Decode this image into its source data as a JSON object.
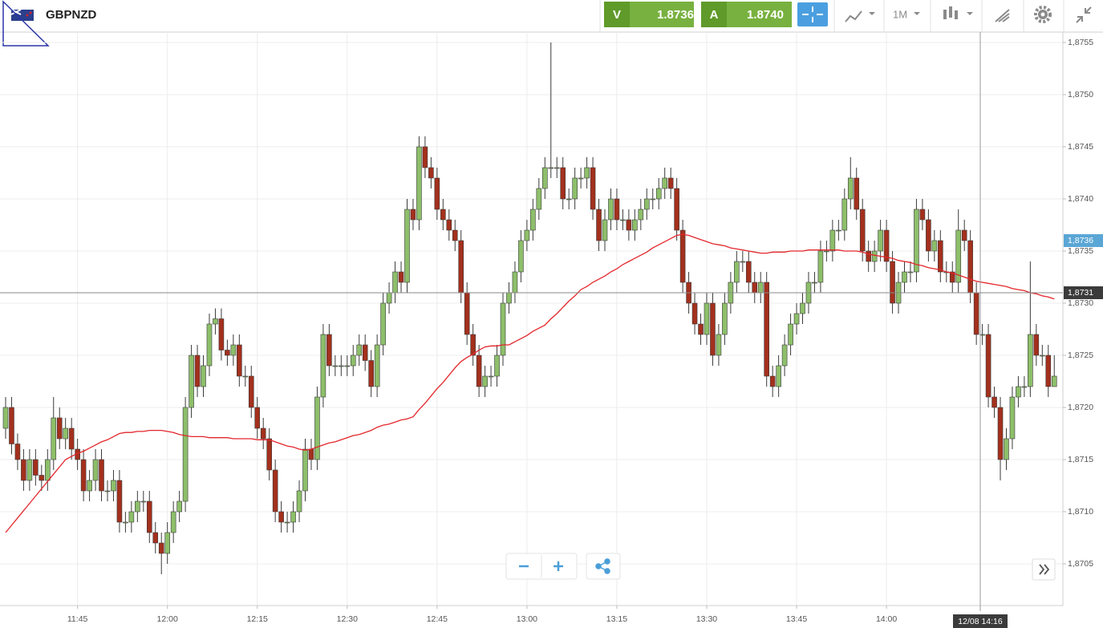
{
  "toolbar": {
    "symbol": "GBPNZD",
    "bid_label": "V",
    "bid": "1.8736",
    "ask_label": "A",
    "ask": "1.8740",
    "timeframe": "1M"
  },
  "chart_data": {
    "type": "candlestick",
    "categories": [
      null,
      null,
      null,
      null,
      null,
      null,
      null,
      null,
      null,
      null,
      null,
      null,
      "11:45",
      null,
      null,
      null,
      null,
      null,
      null,
      null,
      null,
      null,
      null,
      null,
      null,
      null,
      null,
      "12:00",
      null,
      null,
      null,
      null,
      null,
      null,
      null,
      null,
      null,
      null,
      null,
      null,
      null,
      null,
      "12:15",
      null,
      null,
      null,
      null,
      null,
      null,
      null,
      null,
      null,
      null,
      null,
      null,
      null,
      null,
      "12:30",
      null,
      null,
      null,
      null,
      null,
      null,
      null,
      null,
      null,
      null,
      null,
      null,
      null,
      null,
      "12:45",
      null,
      null,
      null,
      null,
      null,
      null,
      null,
      null,
      null,
      null,
      null,
      null,
      null,
      null,
      "13:00",
      null,
      null,
      null,
      null,
      null,
      null,
      null,
      null,
      null,
      null,
      null,
      null,
      null,
      null,
      "13:15",
      null,
      null,
      null,
      null,
      null,
      null,
      null,
      null,
      null,
      null,
      null,
      null,
      null,
      null,
      "13:30",
      null,
      null,
      null,
      null,
      null,
      null,
      null,
      null,
      null,
      null,
      null,
      null,
      null,
      null,
      "13:45",
      null,
      null,
      null,
      null,
      null,
      null,
      null,
      null,
      null,
      null,
      null,
      null,
      null,
      null,
      "14:00",
      null,
      null,
      null,
      null,
      null,
      null,
      null,
      null,
      null,
      null,
      null,
      null,
      null,
      null,
      null,
      null,
      null,
      null,
      null,
      null,
      null,
      null,
      null,
      null,
      null,
      null,
      null,
      null
    ],
    "open": [
      1.8718,
      1.872,
      1.87165,
      1.8715,
      1.8713,
      1.8715,
      1.87135,
      1.8713,
      1.8715,
      1.8719,
      1.8717,
      1.8718,
      1.8716,
      1.8715,
      1.8712,
      1.8713,
      1.8715,
      1.8712,
      1.8712,
      1.8713,
      1.8709,
      1.8709,
      1.871,
      1.8711,
      1.8711,
      1.8708,
      1.8707,
      1.8706,
      1.8708,
      1.871,
      1.8711,
      1.872,
      1.8725,
      1.8722,
      1.8724,
      1.8728,
      1.87285,
      1.87255,
      1.8725,
      1.8726,
      1.8723,
      1.8723,
      1.872,
      1.8718,
      1.8717,
      1.8714,
      1.871,
      1.8709,
      1.8709,
      1.871,
      1.8712,
      1.8716,
      1.8715,
      1.8721,
      1.8727,
      1.8724,
      1.8724,
      1.8724,
      1.8724,
      1.8725,
      1.8726,
      1.87245,
      1.8722,
      1.8726,
      1.873,
      1.8731,
      1.8733,
      1.8732,
      1.8739,
      1.8738,
      1.8745,
      1.8743,
      1.8742,
      1.8739,
      1.8738,
      1.8737,
      1.8736,
      1.8731,
      1.8727,
      1.8725,
      1.8722,
      1.8723,
      1.8723,
      1.8725,
      1.873,
      1.8731,
      1.8733,
      1.8736,
      1.8737,
      1.8739,
      1.8741,
      1.8743,
      1.8743,
      1.8743,
      1.874,
      1.874,
      1.8742,
      1.8742,
      1.8743,
      1.8739,
      1.8736,
      1.8738,
      1.874,
      1.8738,
      1.8738,
      1.8737,
      1.8738,
      1.8739,
      1.874,
      1.874,
      1.8741,
      1.8742,
      1.8741,
      1.8737,
      1.8732,
      1.873,
      1.8728,
      1.8727,
      1.873,
      1.8725,
      1.8727,
      1.873,
      1.8732,
      1.8734,
      1.8734,
      1.8732,
      1.8731,
      1.8732,
      1.8723,
      1.8722,
      1.8724,
      1.8726,
      1.8728,
      1.8729,
      1.873,
      1.8732,
      1.8732,
      1.8735,
      1.8735,
      1.8737,
      1.8737,
      1.874,
      1.8742,
      1.8739,
      1.8735,
      1.8734,
      1.8735,
      1.8737,
      1.8734,
      1.873,
      1.8732,
      1.8733,
      1.8733,
      1.8739,
      1.8738,
      1.8735,
      1.8736,
      1.8733,
      1.8733,
      1.8732,
      1.8737,
      1.8736,
      1.8731,
      1.8727,
      1.8727,
      1.8721,
      1.872,
      1.8715,
      1.8717,
      1.8721,
      1.8722,
      1.8722,
      1.8727,
      1.8725,
      1.8725,
      1.8722
    ],
    "high": [
      1.8721,
      1.8721,
      1.87175,
      1.8716,
      1.8716,
      1.8716,
      1.87145,
      1.8716,
      1.8721,
      1.872,
      1.8719,
      1.8719,
      1.8717,
      1.8716,
      1.8714,
      1.8716,
      1.8716,
      1.8713,
      1.8714,
      1.8714,
      1.871,
      1.8711,
      1.8712,
      1.8712,
      1.8712,
      1.8709,
      1.8708,
      1.8709,
      1.8711,
      1.8712,
      1.8721,
      1.8726,
      1.8726,
      1.8725,
      1.8729,
      1.87295,
      1.87295,
      1.87265,
      1.8727,
      1.8727,
      1.8724,
      1.8724,
      1.8721,
      1.8719,
      1.8718,
      1.8715,
      1.8711,
      1.871,
      1.8711,
      1.8713,
      1.8717,
      1.8717,
      1.8722,
      1.8728,
      1.8728,
      1.8725,
      1.8725,
      1.8725,
      1.8726,
      1.8727,
      1.8727,
      1.87255,
      1.8727,
      1.8731,
      1.8732,
      1.8734,
      1.8734,
      1.874,
      1.874,
      1.8746,
      1.8746,
      1.8744,
      1.8743,
      1.874,
      1.8739,
      1.8738,
      1.8737,
      1.8732,
      1.8728,
      1.8726,
      1.8724,
      1.8724,
      1.8726,
      1.8731,
      1.8732,
      1.8734,
      1.8737,
      1.8738,
      1.874,
      1.8742,
      1.8744,
      1.8755,
      1.8744,
      1.8744,
      1.8741,
      1.8743,
      1.8743,
      1.8744,
      1.8744,
      1.874,
      1.8739,
      1.8741,
      1.8741,
      1.8739,
      1.8739,
      1.8739,
      1.874,
      1.8741,
      1.8741,
      1.8742,
      1.8743,
      1.8743,
      1.8742,
      1.8738,
      1.8733,
      1.8731,
      1.8729,
      1.8731,
      1.8731,
      1.8728,
      1.8731,
      1.8733,
      1.8735,
      1.8735,
      1.8735,
      1.8733,
      1.8733,
      1.8733,
      1.8724,
      1.8725,
      1.8727,
      1.8729,
      1.873,
      1.8731,
      1.8733,
      1.8733,
      1.8736,
      1.8736,
      1.8738,
      1.8738,
      1.8741,
      1.8744,
      1.8743,
      1.874,
      1.8736,
      1.8736,
      1.8738,
      1.8738,
      1.8735,
      1.8733,
      1.8734,
      1.8734,
      1.874,
      1.874,
      1.8739,
      1.8737,
      1.8737,
      1.8734,
      1.8734,
      1.8739,
      1.8738,
      1.8737,
      1.8732,
      1.8728,
      1.8728,
      1.8722,
      1.8721,
      1.8718,
      1.8722,
      1.8723,
      1.8723,
      1.8734,
      1.8728,
      1.8726,
      1.8726,
      1.8725
    ],
    "low": [
      1.8717,
      1.87155,
      1.8714,
      1.8712,
      1.8712,
      1.87125,
      1.8712,
      1.8712,
      1.8714,
      1.8716,
      1.8716,
      1.8715,
      1.8714,
      1.8711,
      1.8711,
      1.8712,
      1.8711,
      1.8711,
      1.8711,
      1.8708,
      1.8708,
      1.8708,
      1.8709,
      1.871,
      1.8707,
      1.8706,
      1.8704,
      1.8705,
      1.8707,
      1.8709,
      1.871,
      1.8719,
      1.8721,
      1.8721,
      1.8723,
      1.8727,
      1.87245,
      1.8724,
      1.8724,
      1.8722,
      1.8722,
      1.8719,
      1.8717,
      1.8716,
      1.8713,
      1.8709,
      1.8708,
      1.8708,
      1.8708,
      1.8709,
      1.8711,
      1.8714,
      1.8714,
      1.872,
      1.8723,
      1.8723,
      1.8723,
      1.8723,
      1.8723,
      1.8724,
      1.87235,
      1.8721,
      1.8721,
      1.8725,
      1.8729,
      1.873,
      1.8731,
      1.8731,
      1.8737,
      1.8737,
      1.8742,
      1.8741,
      1.8738,
      1.8737,
      1.8736,
      1.8735,
      1.873,
      1.8726,
      1.8724,
      1.8721,
      1.8721,
      1.8722,
      1.8722,
      1.8724,
      1.8729,
      1.873,
      1.8732,
      1.8735,
      1.8736,
      1.8738,
      1.874,
      1.8742,
      1.8742,
      1.8739,
      1.8739,
      1.8739,
      1.8741,
      1.8741,
      1.8738,
      1.8735,
      1.8735,
      1.8737,
      1.8737,
      1.8737,
      1.8736,
      1.8736,
      1.8737,
      1.8738,
      1.8739,
      1.8739,
      1.874,
      1.874,
      1.8736,
      1.8731,
      1.8729,
      1.8727,
      1.8726,
      1.8726,
      1.8724,
      1.8724,
      1.8726,
      1.8729,
      1.8731,
      1.8733,
      1.8731,
      1.873,
      1.873,
      1.8722,
      1.8721,
      1.8721,
      1.8723,
      1.8725,
      1.8727,
      1.8728,
      1.8729,
      1.8731,
      1.8731,
      1.8734,
      1.8734,
      1.8736,
      1.8736,
      1.8739,
      1.8738,
      1.8734,
      1.8733,
      1.8733,
      1.8734,
      1.8733,
      1.8729,
      1.8729,
      1.8731,
      1.8732,
      1.8732,
      1.8737,
      1.8734,
      1.8734,
      1.8732,
      1.8732,
      1.8731,
      1.8731,
      1.8735,
      1.873,
      1.8726,
      1.8726,
      1.872,
      1.8719,
      1.8713,
      1.8714,
      1.8716,
      1.872,
      1.8721,
      1.8721,
      1.8724,
      1.8724,
      1.8721,
      1.8722
    ],
    "close": [
      1.872,
      1.87165,
      1.8715,
      1.8713,
      1.8715,
      1.87135,
      1.8713,
      1.8715,
      1.8719,
      1.8717,
      1.8718,
      1.8716,
      1.8715,
      1.8712,
      1.8713,
      1.8715,
      1.8712,
      1.8712,
      1.8713,
      1.8709,
      1.8709,
      1.871,
      1.8711,
      1.8711,
      1.8708,
      1.8707,
      1.8706,
      1.8708,
      1.871,
      1.8711,
      1.872,
      1.8725,
      1.8722,
      1.8724,
      1.8728,
      1.87285,
      1.87255,
      1.8725,
      1.8726,
      1.8723,
      1.8723,
      1.872,
      1.8718,
      1.8717,
      1.8714,
      1.871,
      1.8709,
      1.8709,
      1.871,
      1.8712,
      1.8716,
      1.8715,
      1.8721,
      1.8727,
      1.8724,
      1.8724,
      1.8724,
      1.8724,
      1.8725,
      1.8726,
      1.87245,
      1.8722,
      1.8726,
      1.873,
      1.8731,
      1.8733,
      1.8732,
      1.8739,
      1.8738,
      1.8745,
      1.8743,
      1.8742,
      1.8739,
      1.8738,
      1.8737,
      1.8736,
      1.8731,
      1.8727,
      1.8725,
      1.8722,
      1.8723,
      1.8723,
      1.8725,
      1.873,
      1.8731,
      1.8733,
      1.8736,
      1.8737,
      1.8739,
      1.8741,
      1.8743,
      1.8743,
      1.8743,
      1.874,
      1.874,
      1.8742,
      1.8742,
      1.8743,
      1.8739,
      1.8736,
      1.8738,
      1.874,
      1.8738,
      1.8738,
      1.8737,
      1.8738,
      1.8739,
      1.874,
      1.874,
      1.8741,
      1.8742,
      1.8741,
      1.8737,
      1.8732,
      1.873,
      1.8728,
      1.8727,
      1.873,
      1.8725,
      1.8727,
      1.873,
      1.8732,
      1.8734,
      1.8734,
      1.8732,
      1.8731,
      1.8732,
      1.8723,
      1.8722,
      1.8724,
      1.8726,
      1.8728,
      1.8729,
      1.873,
      1.8732,
      1.8732,
      1.8735,
      1.8735,
      1.8737,
      1.8737,
      1.874,
      1.8742,
      1.8739,
      1.8735,
      1.8734,
      1.8735,
      1.8737,
      1.8734,
      1.873,
      1.8732,
      1.8733,
      1.8733,
      1.8739,
      1.8738,
      1.8735,
      1.8736,
      1.8733,
      1.8733,
      1.8732,
      1.8737,
      1.8736,
      1.8731,
      1.8727,
      1.8727,
      1.8721,
      1.872,
      1.8715,
      1.8717,
      1.8721,
      1.8722,
      1.8722,
      1.8727,
      1.8725,
      1.8725,
      1.8722,
      1.8723
    ],
    "up_color": "#8dbf6a",
    "down_color": "#a3301d",
    "moving_average": {
      "color": "#e3262b",
      "values": [
        1.8708,
        1.87087,
        1.87094,
        1.87101,
        1.87108,
        1.87115,
        1.87122,
        1.87129,
        1.87136,
        1.87143,
        1.8715,
        1.87153,
        1.87156,
        1.87158,
        1.87161,
        1.87164,
        1.87167,
        1.87169,
        1.87172,
        1.87175,
        1.87176,
        1.87176,
        1.87177,
        1.87177,
        1.87178,
        1.87178,
        1.87178,
        1.87177,
        1.87176,
        1.87174,
        1.87173,
        1.87172,
        1.87172,
        1.87172,
        1.87171,
        1.87171,
        1.87171,
        1.87171,
        1.8717,
        1.8717,
        1.8717,
        1.8717,
        1.87169,
        1.87169,
        1.87169,
        1.87167,
        1.87165,
        1.87163,
        1.87162,
        1.8716,
        1.87159,
        1.8716,
        1.87162,
        1.87164,
        1.87166,
        1.87167,
        1.87169,
        1.87171,
        1.87173,
        1.87174,
        1.87176,
        1.87178,
        1.87181,
        1.87183,
        1.87184,
        1.87186,
        1.87188,
        1.87189,
        1.87191,
        1.87198,
        1.87204,
        1.87211,
        1.87218,
        1.87224,
        1.87231,
        1.87238,
        1.87244,
        1.87248,
        1.87251,
        1.87255,
        1.87258,
        1.87259,
        1.87259,
        1.8726,
        1.8726,
        1.87263,
        1.87266,
        1.87269,
        1.87273,
        1.87276,
        1.87279,
        1.87285,
        1.8729,
        1.87296,
        1.87302,
        1.87307,
        1.87313,
        1.87316,
        1.8732,
        1.87323,
        1.87326,
        1.8733,
        1.87333,
        1.87337,
        1.8734,
        1.87343,
        1.87346,
        1.87349,
        1.87353,
        1.87356,
        1.87359,
        1.87362,
        1.87365,
        1.87366,
        1.87365,
        1.87363,
        1.87361,
        1.87359,
        1.87357,
        1.87356,
        1.87355,
        1.87353,
        1.87352,
        1.87351,
        1.8735,
        1.87349,
        1.87348,
        1.87348,
        1.87349,
        1.87349,
        1.87349,
        1.8735,
        1.8735,
        1.8735,
        1.87351,
        1.87351,
        1.87351,
        1.87351,
        1.87351,
        1.87351,
        1.8735,
        1.8735,
        1.8735,
        1.87349,
        1.87347,
        1.87346,
        1.87345,
        1.87344,
        1.87343,
        1.87341,
        1.8734,
        1.87339,
        1.87337,
        1.87336,
        1.87334,
        1.87333,
        1.87332,
        1.8733,
        1.87329,
        1.87327,
        1.87325,
        1.87323,
        1.87321,
        1.8732,
        1.87319,
        1.87318,
        1.87317,
        1.87316,
        1.87314,
        1.87313,
        1.87312,
        1.8731,
        1.87309,
        1.87307,
        1.87306,
        1.87304
      ]
    },
    "ylim": [
      1.8701,
      1.8756
    ],
    "yticks": [
      {
        "value": 1.8705,
        "label": "1,8705"
      },
      {
        "value": 1.871,
        "label": "1,8710"
      },
      {
        "value": 1.8715,
        "label": "1,8715"
      },
      {
        "value": 1.872,
        "label": "1,8720"
      },
      {
        "value": 1.8725,
        "label": "1,8725"
      },
      {
        "value": 1.873,
        "label": "1,8730"
      },
      {
        "value": 1.8735,
        "label": "1,8735"
      },
      {
        "value": 1.874,
        "label": "1,8740"
      },
      {
        "value": 1.8745,
        "label": "1,8745"
      },
      {
        "value": 1.875,
        "label": "1,8750"
      },
      {
        "value": 1.8755,
        "label": "1,8755"
      }
    ],
    "grid": true,
    "price_markers": [
      {
        "value": 1.8736,
        "label": "1,8736",
        "color": "#5aa6d6"
      },
      {
        "value": 1.8731,
        "label": "1,8731",
        "color": "#3b3b3b"
      }
    ],
    "crosshair_label": "12/08 14:16"
  }
}
